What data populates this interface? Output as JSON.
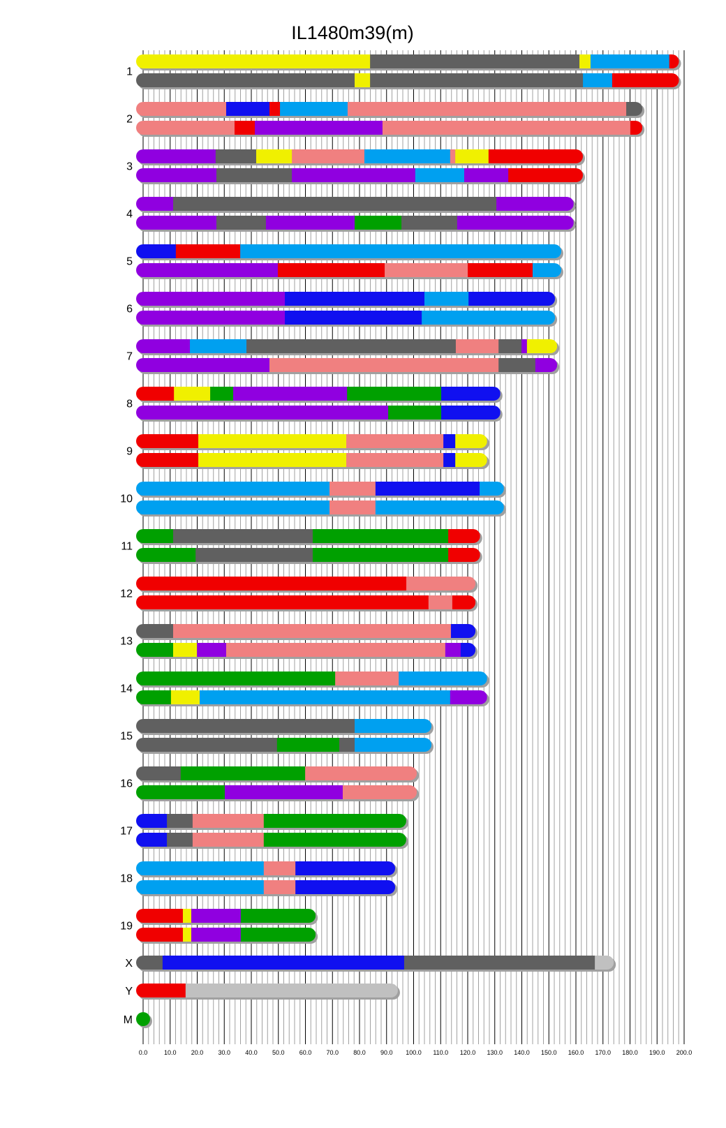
{
  "chart_data": {
    "type": "chromosome-painting",
    "title": "IL1480m39(m)",
    "xlim": [
      0,
      200
    ],
    "x_ticks": [
      "0.0",
      "10.0",
      "20.0",
      "30.0",
      "40.0",
      "50.0",
      "60.0",
      "70.0",
      "80.0",
      "90.0",
      "100.0",
      "110.0",
      "120.0",
      "130.0",
      "140.0",
      "150.0",
      "160.0",
      "170.0",
      "180.0",
      "190.0",
      "200.0"
    ],
    "grid": "vertical lines every 2 units, major every 10",
    "colors": {
      "yellow": "#f0f000",
      "gray": "#606060",
      "skyblue": "#00a0f0",
      "red": "#f00000",
      "salmon": "#f08080",
      "blue": "#1010f0",
      "purple": "#9000e0",
      "green": "#00a000",
      "lightgray": "#c0c0c0"
    },
    "segments_format": "each haplotype = list of [end_position, color]; each segment starts where the previous ends (first at 0)",
    "chromosomes": [
      {
        "name": "1",
        "haplotypes": [
          [
            [
              83.9,
              "yellow"
            ],
            [
              161.3,
              "gray"
            ],
            [
              165.4,
              "yellow"
            ],
            [
              194.5,
              "skyblue"
            ],
            [
              195.5,
              "red"
            ]
          ],
          [
            [
              78.2,
              "gray"
            ],
            [
              83.9,
              "yellow"
            ],
            [
              162.6,
              "gray"
            ],
            [
              173.4,
              "skyblue"
            ],
            [
              195.5,
              "red"
            ]
          ]
        ]
      },
      {
        "name": "2",
        "haplotypes": [
          [
            [
              30.7,
              "salmon"
            ],
            [
              46.7,
              "blue"
            ],
            [
              50.6,
              "red"
            ],
            [
              75.6,
              "skyblue"
            ],
            [
              178.6,
              "salmon"
            ],
            [
              182,
              "gray"
            ]
          ],
          [
            [
              33.8,
              "salmon"
            ],
            [
              41.3,
              "red"
            ],
            [
              88.5,
              "purple"
            ],
            [
              180.1,
              "salmon"
            ],
            [
              182,
              "red"
            ]
          ]
        ]
      },
      {
        "name": "3",
        "haplotypes": [
          [
            [
              26.8,
              "purple"
            ],
            [
              41.8,
              "gray"
            ],
            [
              55,
              "yellow"
            ],
            [
              81.8,
              "salmon"
            ],
            [
              113.5,
              "skyblue"
            ],
            [
              115.4,
              "salmon"
            ],
            [
              127.7,
              "yellow"
            ],
            [
              160,
              "red"
            ]
          ],
          [
            [
              27.1,
              "purple"
            ],
            [
              55,
              "gray"
            ],
            [
              100.6,
              "purple"
            ],
            [
              118.7,
              "skyblue"
            ],
            [
              135,
              "purple"
            ],
            [
              160,
              "red"
            ]
          ]
        ]
      },
      {
        "name": "4",
        "haplotypes": [
          [
            [
              11.1,
              "purple"
            ],
            [
              130.6,
              "gray"
            ],
            [
              156.6,
              "purple"
            ]
          ],
          [
            [
              27.1,
              "purple"
            ],
            [
              45.4,
              "gray"
            ],
            [
              78.2,
              "purple"
            ],
            [
              95.5,
              "green"
            ],
            [
              116.1,
              "gray"
            ],
            [
              156.6,
              "purple"
            ]
          ]
        ]
      },
      {
        "name": "5",
        "haplotypes": [
          [
            [
              12.1,
              "blue"
            ],
            [
              35.9,
              "red"
            ],
            [
              152,
              "skyblue"
            ]
          ],
          [
            [
              49.8,
              "purple"
            ],
            [
              89.3,
              "red"
            ],
            [
              120,
              "salmon"
            ],
            [
              144,
              "red"
            ],
            [
              152,
              "skyblue"
            ]
          ]
        ]
      },
      {
        "name": "6",
        "haplotypes": [
          [
            [
              52.4,
              "purple"
            ],
            [
              104,
              "blue"
            ],
            [
              120.3,
              "skyblue"
            ],
            [
              149.7,
              "blue"
            ]
          ],
          [
            [
              52.4,
              "purple"
            ],
            [
              103,
              "blue"
            ],
            [
              149.7,
              "skyblue"
            ]
          ]
        ]
      },
      {
        "name": "7",
        "haplotypes": [
          [
            [
              17.3,
              "purple"
            ],
            [
              38.2,
              "skyblue"
            ],
            [
              115.6,
              "gray"
            ],
            [
              131.4,
              "salmon"
            ],
            [
              139.9,
              "gray"
            ],
            [
              141.9,
              "purple"
            ],
            [
              150.5,
              "yellow"
            ]
          ],
          [
            [
              46.7,
              "purple"
            ],
            [
              131.4,
              "salmon"
            ],
            [
              145,
              "gray"
            ],
            [
              150.5,
              "purple"
            ]
          ]
        ]
      },
      {
        "name": "8",
        "haplotypes": [
          [
            [
              11.4,
              "red"
            ],
            [
              24.8,
              "yellow"
            ],
            [
              33.3,
              "green"
            ],
            [
              75.4,
              "purple"
            ],
            [
              110.2,
              "green"
            ],
            [
              129.5,
              "blue"
            ]
          ],
          [
            [
              90.6,
              "purple"
            ],
            [
              110.2,
              "green"
            ],
            [
              129.5,
              "blue"
            ]
          ]
        ]
      },
      {
        "name": "9",
        "haplotypes": [
          [
            [
              20.4,
              "red"
            ],
            [
              75.1,
              "yellow"
            ],
            [
              111,
              "salmon"
            ],
            [
              115.4,
              "blue"
            ],
            [
              124.6,
              "yellow"
            ]
          ],
          [
            [
              20.4,
              "red"
            ],
            [
              75.1,
              "yellow"
            ],
            [
              111,
              "salmon"
            ],
            [
              115.4,
              "blue"
            ],
            [
              124.6,
              "yellow"
            ]
          ]
        ]
      },
      {
        "name": "10",
        "haplotypes": [
          [
            [
              68.9,
              "skyblue"
            ],
            [
              85.9,
              "salmon"
            ],
            [
              124.4,
              "blue"
            ],
            [
              130.8,
              "skyblue"
            ]
          ],
          [
            [
              68.9,
              "skyblue"
            ],
            [
              85.9,
              "salmon"
            ],
            [
              130.8,
              "skyblue"
            ]
          ]
        ]
      },
      {
        "name": "11",
        "haplotypes": [
          [
            [
              11.1,
              "green"
            ],
            [
              62.7,
              "gray"
            ],
            [
              112.8,
              "green"
            ],
            [
              122,
              "red"
            ]
          ],
          [
            [
              19.4,
              "green"
            ],
            [
              62.7,
              "gray"
            ],
            [
              112.8,
              "green"
            ],
            [
              122,
              "red"
            ]
          ]
        ]
      },
      {
        "name": "12",
        "haplotypes": [
          [
            [
              97.3,
              "red"
            ],
            [
              120.3,
              "salmon"
            ]
          ],
          [
            [
              105.5,
              "red"
            ],
            [
              114.3,
              "salmon"
            ],
            [
              120.3,
              "red"
            ]
          ]
        ]
      },
      {
        "name": "13",
        "haplotypes": [
          [
            [
              11.1,
              "gray"
            ],
            [
              113.8,
              "salmon"
            ],
            [
              120.3,
              "blue"
            ]
          ],
          [
            [
              11.1,
              "green"
            ],
            [
              19.9,
              "yellow"
            ],
            [
              30.7,
              "purple"
            ],
            [
              111.7,
              "salmon"
            ],
            [
              117.4,
              "purple"
            ],
            [
              120.3,
              "blue"
            ]
          ]
        ]
      },
      {
        "name": "14",
        "haplotypes": [
          [
            [
              71,
              "green"
            ],
            [
              94.5,
              "salmon"
            ],
            [
              124.6,
              "skyblue"
            ]
          ],
          [
            [
              10.3,
              "green"
            ],
            [
              20.9,
              "yellow"
            ],
            [
              113.5,
              "skyblue"
            ],
            [
              124.6,
              "purple"
            ]
          ]
        ]
      },
      {
        "name": "15",
        "haplotypes": [
          [
            [
              78.2,
              "gray"
            ],
            [
              104,
              "skyblue"
            ]
          ],
          [
            [
              49.5,
              "gray"
            ],
            [
              72.5,
              "green"
            ],
            [
              78.2,
              "gray"
            ],
            [
              104,
              "skyblue"
            ]
          ]
        ]
      },
      {
        "name": "16",
        "haplotypes": [
          [
            [
              13.9,
              "gray"
            ],
            [
              59.9,
              "green"
            ],
            [
              98.6,
              "salmon"
            ]
          ],
          [
            [
              30.2,
              "green"
            ],
            [
              73.8,
              "purple"
            ],
            [
              98.6,
              "salmon"
            ]
          ]
        ]
      },
      {
        "name": "17",
        "haplotypes": [
          [
            [
              8.8,
              "blue"
            ],
            [
              18.3,
              "gray"
            ],
            [
              44.6,
              "salmon"
            ],
            [
              94.7,
              "green"
            ]
          ],
          [
            [
              8.8,
              "blue"
            ],
            [
              18.3,
              "gray"
            ],
            [
              44.6,
              "salmon"
            ],
            [
              94.7,
              "green"
            ]
          ]
        ]
      },
      {
        "name": "18",
        "haplotypes": [
          [
            [
              44.6,
              "skyblue"
            ],
            [
              56.3,
              "salmon"
            ],
            [
              90.6,
              "blue"
            ]
          ],
          [
            [
              44.6,
              "skyblue"
            ],
            [
              56.3,
              "salmon"
            ],
            [
              90.6,
              "blue"
            ]
          ]
        ]
      },
      {
        "name": "19",
        "haplotypes": [
          [
            [
              14.7,
              "red"
            ],
            [
              17.8,
              "yellow"
            ],
            [
              36.1,
              "purple"
            ],
            [
              61.2,
              "green"
            ]
          ],
          [
            [
              14.7,
              "red"
            ],
            [
              17.8,
              "yellow"
            ],
            [
              36.1,
              "purple"
            ],
            [
              61.2,
              "green"
            ]
          ]
        ]
      },
      {
        "name": "X",
        "haplotypes": [
          [
            [
              7.2,
              "gray"
            ],
            [
              96.5,
              "blue"
            ],
            [
              167,
              "gray"
            ],
            [
              171.4,
              "lightgray"
            ]
          ]
        ]
      },
      {
        "name": "Y",
        "haplotypes": [
          [
            [
              15.7,
              "red"
            ],
            [
              91.6,
              "lightgray"
            ]
          ]
        ]
      },
      {
        "name": "M",
        "haplotypes": [
          [
            [
              0,
              "green"
            ]
          ]
        ]
      }
    ]
  }
}
